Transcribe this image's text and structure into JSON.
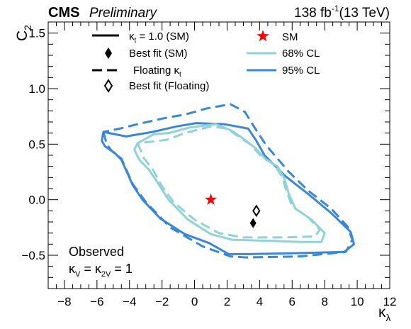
{
  "header": {
    "experiment": "CMS",
    "status": "Preliminary",
    "luminosity": "138 fb",
    "lumi_exponent": "-1",
    "energy": "(13 TeV)"
  },
  "chart_data": {
    "type": "contour",
    "xlabel": "κ",
    "xlabel_sub": "λ",
    "ylabel": "C",
    "ylabel_sub": "2",
    "xlim": [
      -9,
      12
    ],
    "ylim": [
      -0.8,
      1.6
    ],
    "xticks": [
      -8,
      -6,
      -4,
      -2,
      0,
      2,
      4,
      6,
      8,
      10,
      12
    ],
    "yticks": [
      -0.5,
      0.0,
      0.5,
      1.0,
      1.5
    ],
    "xtick_labels": [
      "−8",
      "−6",
      "−4",
      "−2",
      "0",
      "2",
      "4",
      "6",
      "8",
      "10",
      "12"
    ],
    "ytick_labels": [
      "−0.5",
      "0.0",
      "0.5",
      "1.0",
      "1.5"
    ],
    "legend": {
      "placement": "top",
      "entries": [
        {
          "label": "κ",
          "sub": "t",
          "rest": " = 1.0 (SM)",
          "style": "solid-black"
        },
        {
          "label": "Best fit (SM)",
          "style": "filled-diamond"
        },
        {
          "label": "Floating κ",
          "sub": "t",
          "rest": "",
          "style": "dashed-black"
        },
        {
          "label": "Best fit (Floating)",
          "style": "open-diamond"
        },
        {
          "label": "SM",
          "style": "red-star"
        },
        {
          "label": "68% CL",
          "style": "light-blue-line"
        },
        {
          "label": "95% CL",
          "style": "blue-line"
        }
      ]
    },
    "annotations": {
      "observed": "Observed",
      "coupling_line": {
        "k": "κ",
        "v_sub": "V",
        "eq": " = ",
        "k2": "κ",
        "v2_sub": "2V",
        "rest": " = 1"
      }
    },
    "colors": {
      "cl68": "#8fd3d8",
      "cl95": "#3a87d5",
      "sm_star": "#ff0000"
    },
    "points": {
      "sm": {
        "x": 1.0,
        "y": 0.0
      },
      "best_fit_sm": {
        "x": 3.6,
        "y": -0.21
      },
      "best_fit_floating": {
        "x": 3.8,
        "y": -0.1
      }
    },
    "series": [
      {
        "name": "95% CL",
        "variant": "κt = 1.0 (SM)",
        "color": "#3a87d5",
        "dashed": false,
        "points": [
          [
            -5.6,
            0.61
          ],
          [
            -5.7,
            0.53
          ],
          [
            -5.5,
            0.48
          ],
          [
            -4.9,
            0.42
          ],
          [
            -4.5,
            0.36
          ],
          [
            -3.8,
            0.13
          ],
          [
            -3.2,
            0.0
          ],
          [
            -2.1,
            -0.17
          ],
          [
            -0.6,
            -0.31
          ],
          [
            0.9,
            -0.39
          ],
          [
            2.1,
            -0.49
          ],
          [
            3.3,
            -0.49
          ],
          [
            6.6,
            -0.48
          ],
          [
            9.2,
            -0.47
          ],
          [
            9.8,
            -0.4
          ],
          [
            9.6,
            -0.29
          ],
          [
            8.4,
            -0.12
          ],
          [
            7.0,
            0.05
          ],
          [
            5.6,
            0.21
          ],
          [
            4.3,
            0.4
          ],
          [
            3.8,
            0.53
          ],
          [
            3.3,
            0.64
          ],
          [
            2.6,
            0.66
          ],
          [
            1.8,
            0.68
          ],
          [
            0.1,
            0.69
          ],
          [
            -1.1,
            0.66
          ],
          [
            -2.6,
            0.61
          ],
          [
            -4.2,
            0.57
          ],
          [
            -5.6,
            0.61
          ]
        ]
      },
      {
        "name": "95% CL",
        "variant": "Floating κt",
        "color": "#3a87d5",
        "dashed": true,
        "points": [
          [
            -5.6,
            0.61
          ],
          [
            -5.4,
            0.5
          ],
          [
            -5.1,
            0.44
          ],
          [
            -4.5,
            0.37
          ],
          [
            -3.8,
            0.14
          ],
          [
            -3.0,
            -0.02
          ],
          [
            -1.5,
            -0.25
          ],
          [
            0.5,
            -0.42
          ],
          [
            2.2,
            -0.51
          ],
          [
            3.2,
            -0.52
          ],
          [
            6.5,
            -0.51
          ],
          [
            9.3,
            -0.47
          ],
          [
            9.7,
            -0.36
          ],
          [
            9.4,
            -0.24
          ],
          [
            8.4,
            -0.08
          ],
          [
            7.0,
            0.08
          ],
          [
            5.8,
            0.25
          ],
          [
            4.4,
            0.49
          ],
          [
            3.6,
            0.67
          ],
          [
            3.1,
            0.79
          ],
          [
            2.2,
            0.86
          ],
          [
            0.7,
            0.82
          ],
          [
            -0.5,
            0.77
          ],
          [
            -2.0,
            0.73
          ],
          [
            -3.5,
            0.68
          ],
          [
            -4.6,
            0.64
          ],
          [
            -5.6,
            0.61
          ]
        ]
      },
      {
        "name": "68% CL",
        "variant": "κt = 1.0 (SM)",
        "color": "#8fd3d8",
        "dashed": false,
        "points": [
          [
            -3.5,
            0.51
          ],
          [
            -3.7,
            0.45
          ],
          [
            -3.4,
            0.36
          ],
          [
            -2.8,
            0.27
          ],
          [
            -2.3,
            0.16
          ],
          [
            -1.6,
            0.0
          ],
          [
            -0.4,
            -0.18
          ],
          [
            1.0,
            -0.31
          ],
          [
            2.3,
            -0.36
          ],
          [
            4.6,
            -0.37
          ],
          [
            6.5,
            -0.38
          ],
          [
            7.8,
            -0.38
          ],
          [
            8.0,
            -0.3
          ],
          [
            7.2,
            -0.18
          ],
          [
            6.2,
            -0.08
          ],
          [
            5.8,
            0.05
          ],
          [
            5.5,
            0.2
          ],
          [
            5.1,
            0.3
          ],
          [
            4.4,
            0.36
          ],
          [
            3.7,
            0.47
          ],
          [
            3.0,
            0.55
          ],
          [
            2.3,
            0.62
          ],
          [
            1.3,
            0.68
          ],
          [
            -0.3,
            0.65
          ],
          [
            -1.6,
            0.6
          ],
          [
            -2.5,
            0.59
          ],
          [
            -3.0,
            0.55
          ],
          [
            -3.5,
            0.51
          ]
        ]
      },
      {
        "name": "68% CL",
        "variant": "Floating κt",
        "color": "#8fd3d8",
        "dashed": true,
        "points": [
          [
            -3.5,
            0.51
          ],
          [
            -3.1,
            0.37
          ],
          [
            -2.6,
            0.28
          ],
          [
            -2.0,
            0.12
          ],
          [
            -1.3,
            -0.02
          ],
          [
            0.0,
            -0.18
          ],
          [
            1.5,
            -0.3
          ],
          [
            3.0,
            -0.34
          ],
          [
            5.5,
            -0.34
          ],
          [
            7.4,
            -0.33
          ],
          [
            7.7,
            -0.27
          ],
          [
            7.0,
            -0.16
          ],
          [
            6.0,
            -0.06
          ],
          [
            5.6,
            0.1
          ],
          [
            5.4,
            0.2
          ],
          [
            4.9,
            0.32
          ],
          [
            4.1,
            0.39
          ],
          [
            3.4,
            0.5
          ],
          [
            2.7,
            0.57
          ],
          [
            2.0,
            0.64
          ],
          [
            1.0,
            0.66
          ],
          [
            -0.6,
            0.6
          ],
          [
            -1.7,
            0.54
          ],
          [
            -2.8,
            0.52
          ],
          [
            -3.5,
            0.51
          ]
        ]
      }
    ]
  }
}
